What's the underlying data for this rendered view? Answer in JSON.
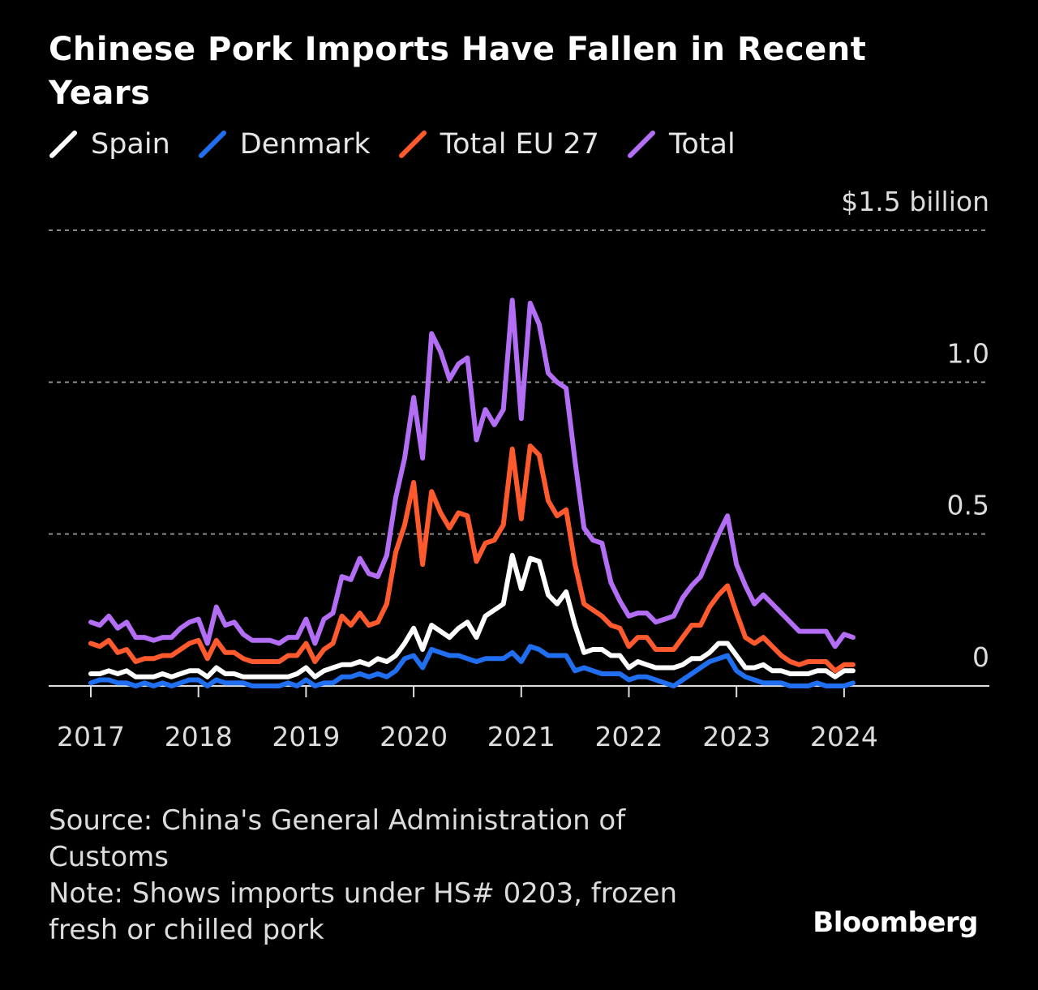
{
  "chart_data": {
    "type": "line",
    "title": "Chinese Pork Imports Have Fallen in Recent Years",
    "y_unit_label": "$1.5 billion",
    "y_ticks": [
      {
        "value": 0,
        "label": "0"
      },
      {
        "value": 0.5,
        "label": "0.5"
      },
      {
        "value": 1.0,
        "label": "1.0"
      },
      {
        "value": 1.5,
        "label": "$1.5 billion"
      }
    ],
    "ylim": [
      0,
      1.5
    ],
    "x_ticks": [
      "2017",
      "2018",
      "2019",
      "2020",
      "2021",
      "2022",
      "2023",
      "2024"
    ],
    "x_start": 2017.0,
    "x_step": 0.08333,
    "series": [
      {
        "name": "Total",
        "color": "#b46ef5",
        "values": [
          0.21,
          0.2,
          0.23,
          0.19,
          0.21,
          0.16,
          0.16,
          0.15,
          0.16,
          0.16,
          0.19,
          0.21,
          0.22,
          0.14,
          0.26,
          0.2,
          0.21,
          0.17,
          0.15,
          0.15,
          0.15,
          0.14,
          0.16,
          0.16,
          0.22,
          0.14,
          0.22,
          0.24,
          0.36,
          0.35,
          0.42,
          0.37,
          0.36,
          0.43,
          0.62,
          0.75,
          0.95,
          0.75,
          1.16,
          1.1,
          1.01,
          1.06,
          1.08,
          0.81,
          0.91,
          0.86,
          0.91,
          1.27,
          0.88,
          1.26,
          1.19,
          1.03,
          1.0,
          0.98,
          0.74,
          0.52,
          0.48,
          0.47,
          0.34,
          0.28,
          0.23,
          0.24,
          0.24,
          0.21,
          0.22,
          0.23,
          0.29,
          0.33,
          0.36,
          0.43,
          0.5,
          0.56,
          0.4,
          0.33,
          0.27,
          0.3,
          0.27,
          0.24,
          0.21,
          0.18,
          0.18,
          0.18,
          0.18,
          0.13,
          0.17,
          0.16
        ]
      },
      {
        "name": "Total EU 27",
        "color": "#ff5a2d",
        "values": [
          0.14,
          0.13,
          0.15,
          0.11,
          0.12,
          0.08,
          0.09,
          0.09,
          0.1,
          0.1,
          0.12,
          0.14,
          0.15,
          0.09,
          0.15,
          0.11,
          0.11,
          0.09,
          0.08,
          0.08,
          0.08,
          0.08,
          0.1,
          0.1,
          0.14,
          0.08,
          0.12,
          0.14,
          0.23,
          0.2,
          0.24,
          0.2,
          0.21,
          0.27,
          0.44,
          0.53,
          0.67,
          0.4,
          0.64,
          0.57,
          0.52,
          0.57,
          0.56,
          0.41,
          0.47,
          0.48,
          0.53,
          0.78,
          0.55,
          0.79,
          0.76,
          0.61,
          0.56,
          0.58,
          0.4,
          0.27,
          0.25,
          0.23,
          0.2,
          0.19,
          0.13,
          0.16,
          0.16,
          0.12,
          0.12,
          0.12,
          0.16,
          0.2,
          0.2,
          0.26,
          0.3,
          0.33,
          0.24,
          0.16,
          0.14,
          0.16,
          0.13,
          0.1,
          0.08,
          0.07,
          0.08,
          0.08,
          0.08,
          0.05,
          0.07,
          0.07
        ]
      },
      {
        "name": "Spain",
        "color": "#ffffff",
        "values": [
          0.04,
          0.04,
          0.05,
          0.04,
          0.05,
          0.03,
          0.03,
          0.03,
          0.04,
          0.03,
          0.04,
          0.05,
          0.05,
          0.03,
          0.06,
          0.04,
          0.04,
          0.03,
          0.03,
          0.03,
          0.03,
          0.03,
          0.03,
          0.04,
          0.06,
          0.03,
          0.05,
          0.06,
          0.07,
          0.07,
          0.08,
          0.07,
          0.09,
          0.08,
          0.1,
          0.14,
          0.19,
          0.12,
          0.2,
          0.18,
          0.16,
          0.19,
          0.21,
          0.16,
          0.23,
          0.25,
          0.27,
          0.43,
          0.32,
          0.42,
          0.41,
          0.3,
          0.27,
          0.31,
          0.2,
          0.11,
          0.12,
          0.12,
          0.1,
          0.1,
          0.06,
          0.08,
          0.07,
          0.06,
          0.06,
          0.06,
          0.07,
          0.09,
          0.09,
          0.11,
          0.14,
          0.14,
          0.1,
          0.06,
          0.06,
          0.07,
          0.05,
          0.05,
          0.04,
          0.04,
          0.04,
          0.05,
          0.05,
          0.03,
          0.05,
          0.05
        ]
      },
      {
        "name": "Denmark",
        "color": "#1f6ff0",
        "values": [
          0.01,
          0.02,
          0.02,
          0.01,
          0.01,
          0.0,
          0.01,
          0.0,
          0.01,
          0.0,
          0.01,
          0.02,
          0.02,
          0.0,
          0.02,
          0.01,
          0.01,
          0.01,
          0.0,
          0.0,
          0.0,
          0.0,
          0.01,
          0.0,
          0.02,
          0.0,
          0.01,
          0.01,
          0.03,
          0.03,
          0.04,
          0.03,
          0.04,
          0.03,
          0.05,
          0.09,
          0.1,
          0.06,
          0.12,
          0.11,
          0.1,
          0.1,
          0.09,
          0.08,
          0.09,
          0.09,
          0.09,
          0.11,
          0.08,
          0.13,
          0.12,
          0.1,
          0.1,
          0.1,
          0.05,
          0.06,
          0.05,
          0.04,
          0.04,
          0.04,
          0.02,
          0.03,
          0.03,
          0.02,
          0.01,
          0.0,
          0.02,
          0.04,
          0.06,
          0.08,
          0.09,
          0.1,
          0.05,
          0.03,
          0.02,
          0.01,
          0.01,
          0.01,
          0.0,
          0.0,
          0.0,
          0.01,
          0.0,
          0.0,
          0.0,
          0.01
        ]
      }
    ],
    "legend": [
      "Spain",
      "Denmark",
      "Total EU 27",
      "Total"
    ]
  },
  "legend": [
    {
      "label": "Spain",
      "color": "#ffffff"
    },
    {
      "label": "Denmark",
      "color": "#1f6ff0"
    },
    {
      "label": "Total EU 27",
      "color": "#ff5a2d"
    },
    {
      "label": "Total",
      "color": "#b46ef5"
    }
  ],
  "footer": {
    "source_line1": "Source: China's General Administration of",
    "source_line2": "Customs",
    "note_line1": "Note: Shows imports under HS# 0203, frozen",
    "note_line2": "fresh or chilled pork",
    "brand": "Bloomberg"
  }
}
